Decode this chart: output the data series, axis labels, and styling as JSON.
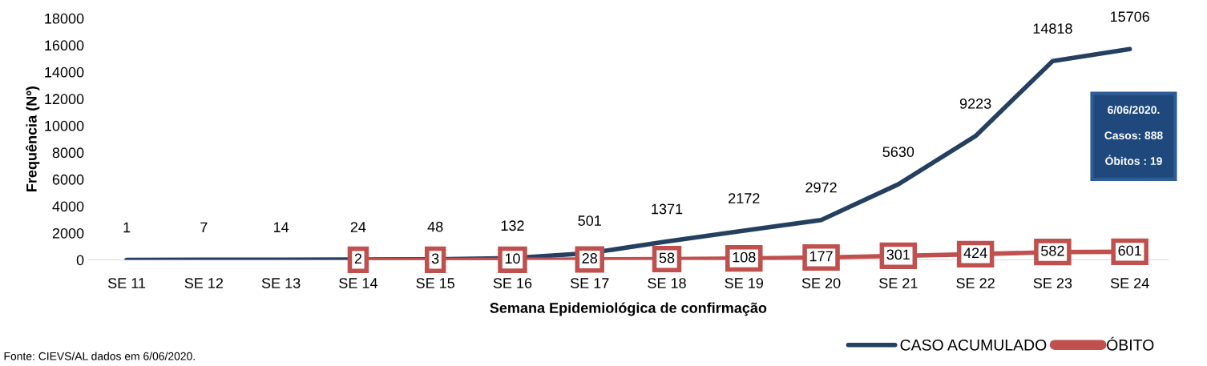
{
  "chart_data": {
    "type": "line",
    "xlabel": "Semana Epidemiológica de confirmação",
    "ylabel": "Frequência (Nº)",
    "categories": [
      "SE 11",
      "SE 12",
      "SE 13",
      "SE 14",
      "SE 15",
      "SE 16",
      "SE 17",
      "SE 18",
      "SE 19",
      "SE 20",
      "SE 21",
      "SE 22",
      "SE 23",
      "SE 24"
    ],
    "series": [
      {
        "name": "CASO ACUMULADO",
        "color": "#243f60",
        "marker": "none",
        "values": [
          1,
          7,
          14,
          24,
          48,
          132,
          501,
          1371,
          2172,
          2972,
          5630,
          9223,
          14818,
          15706
        ]
      },
      {
        "name": "ÓBITO",
        "color": "#c0504d",
        "marker": "square",
        "values": [
          null,
          null,
          null,
          2,
          3,
          10,
          28,
          58,
          108,
          177,
          301,
          424,
          582,
          601
        ]
      }
    ],
    "ylim": [
      0,
      18000
    ],
    "yticks": [
      0,
      2000,
      4000,
      6000,
      8000,
      10000,
      12000,
      14000,
      16000,
      18000
    ],
    "data_labels": true,
    "grid": false,
    "legend": "bottom right",
    "line_style": "solid",
    "annotations": [
      "6/06/2020.",
      "Casos: 888",
      "Óbitos : 19",
      "Fonte: CIEVS/AL dados em 6/06/2020."
    ]
  }
}
